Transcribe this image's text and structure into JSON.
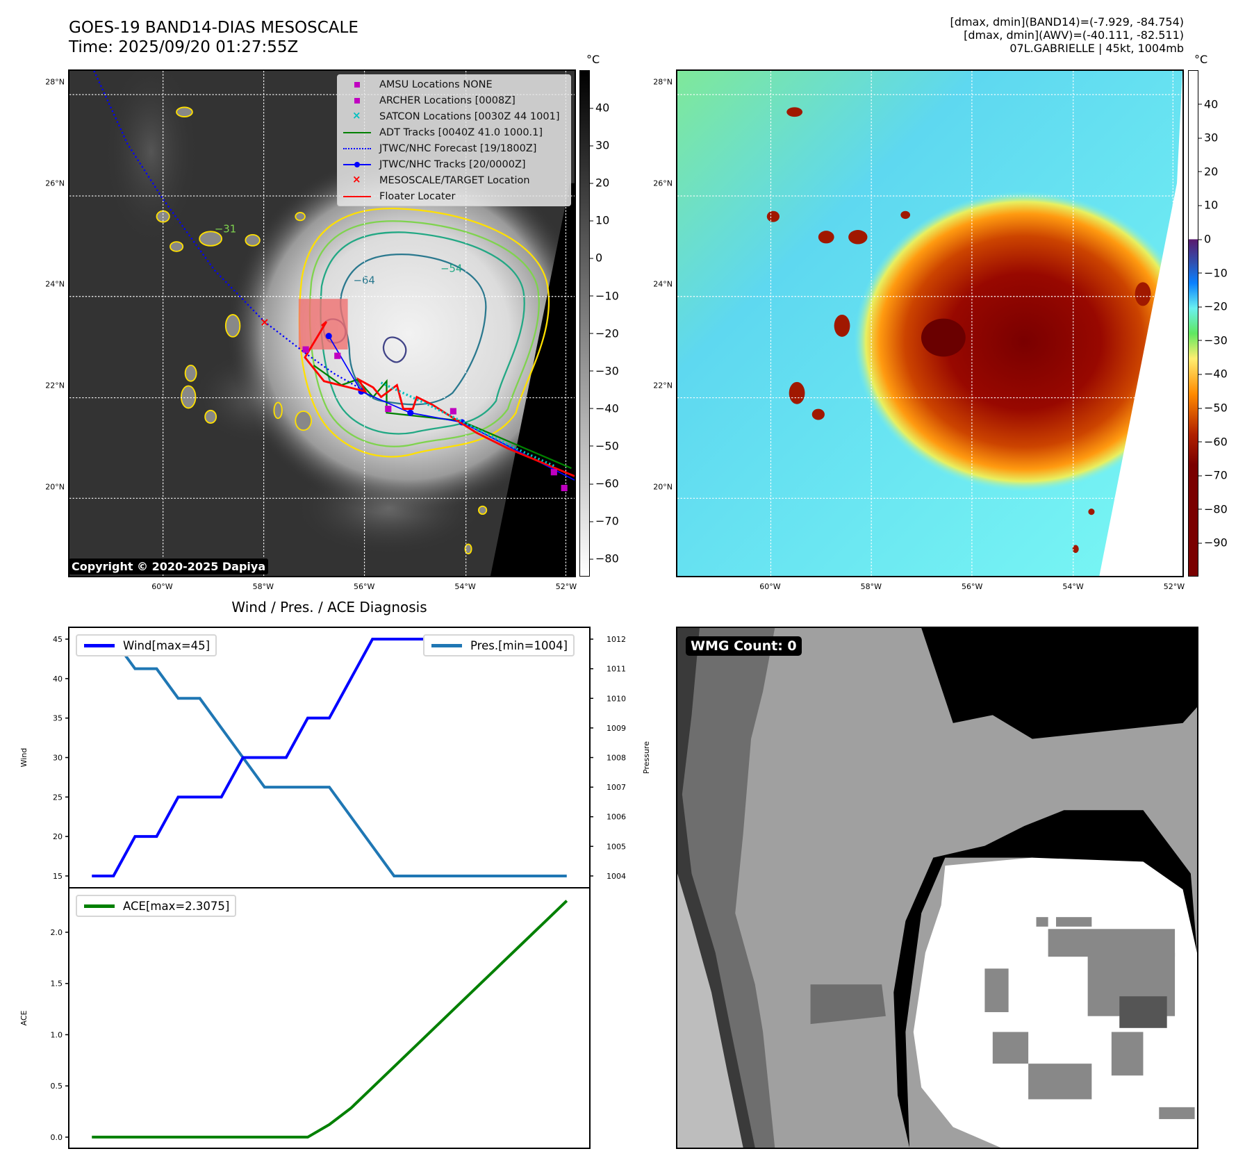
{
  "header": {
    "title_line1": "GOES-19 BAND14-DIAS MESOSCALE",
    "title_line2": "Time: 2025/09/20 01:27:55Z",
    "info_line1": "[dmax, dmin](BAND14)=(-7.929, -84.754)",
    "info_line2": "[dmax, dmin](AWV)=(-40.111, -82.511)",
    "info_line3": "07L.GABRIELLE | 45kt, 1004mb"
  },
  "map_axes": {
    "lat_labels": [
      "28°N",
      "26°N",
      "24°N",
      "22°N",
      "20°N"
    ],
    "lat_values": [
      28,
      26,
      24,
      22,
      20
    ],
    "lon_labels": [
      "60°W",
      "58°W",
      "56°W",
      "54°W",
      "52°W"
    ],
    "lon_values": [
      -60,
      -58,
      -56,
      -54,
      -52
    ]
  },
  "ir_map": {
    "legend": [
      {
        "label": "AMSU Locations NONE",
        "icon": "square-marker",
        "color": "#c000c0"
      },
      {
        "label": "ARCHER Locations [0008Z]",
        "icon": "square-marker",
        "color": "#c000c0"
      },
      {
        "label": "SATCON Locations [0030Z 44 1001]",
        "icon": "x-marker",
        "color": "#00c0c0"
      },
      {
        "label": "ADT Tracks [0040Z 41.0 1000.1]",
        "icon": "solid-line",
        "color": "#008000"
      },
      {
        "label": "JTWC/NHC Forecast [19/1800Z]",
        "icon": "dotted-line",
        "color": "#0000ff"
      },
      {
        "label": "JTWC/NHC Tracks [20/0000Z]",
        "icon": "line-dot",
        "color": "#0000ff"
      },
      {
        "label": "MESOSCALE/TARGET Location",
        "icon": "x-marker",
        "color": "#ff0000"
      },
      {
        "label": "Floater Locater",
        "icon": "solid-line",
        "color": "#ff0000"
      }
    ],
    "contour_labels": [
      "−31",
      "−54",
      "−64"
    ],
    "copyright": "Copyright © 2020-2025 Dapiya",
    "colorbar": {
      "unit": "°C",
      "min": -84.754,
      "max": 50,
      "ticks": [
        40,
        30,
        20,
        10,
        0,
        -10,
        -20,
        -30,
        -40,
        -50,
        -60,
        -70,
        -80
      ],
      "tick_labels": [
        "40",
        "30",
        "20",
        "10",
        "0",
        "−10",
        "−20",
        "−30",
        "−40",
        "−50",
        "−60",
        "−70",
        "−80"
      ]
    }
  },
  "awv_map": {
    "colorbar": {
      "unit": "°C",
      "min": -100,
      "max": 50,
      "ticks": [
        40,
        30,
        20,
        10,
        0,
        -10,
        -20,
        -30,
        -40,
        -50,
        -60,
        -70,
        -80,
        -90
      ],
      "tick_labels": [
        "40",
        "30",
        "20",
        "10",
        "0",
        "−10",
        "−20",
        "−30",
        "−40",
        "−50",
        "−60",
        "−70",
        "−80",
        "−90"
      ]
    }
  },
  "wmg": {
    "count_label": "WMG Count: 0"
  },
  "chart_data": [
    {
      "type": "line",
      "title": "Wind / Pres. / ACE Diagnosis",
      "x": [
        0,
        1,
        2,
        3,
        4,
        5,
        6,
        7,
        8,
        9,
        10,
        11,
        12,
        13,
        14,
        15,
        16,
        17,
        18,
        19,
        20,
        21,
        22
      ],
      "xlim": [
        -1.07,
        23.07
      ],
      "series": [
        {
          "name": "Wind[max=45]",
          "axis": "left",
          "color": "#0000ff",
          "values": [
            15,
            15,
            20,
            20,
            25,
            25,
            25,
            30,
            30,
            30,
            35,
            35,
            40,
            45,
            45,
            45,
            45,
            45,
            45,
            45,
            45,
            45,
            45
          ]
        },
        {
          "name": "Pres.[min=1004]",
          "axis": "right",
          "color": "#1f77b4",
          "values": [
            1012,
            1012,
            1011,
            1011,
            1010,
            1010,
            1009,
            1008,
            1007,
            1007,
            1007,
            1007,
            1006,
            1005,
            1004,
            1004,
            1004,
            1004,
            1004,
            1004,
            1004,
            1004,
            1004
          ]
        }
      ],
      "ylabel": "Wind",
      "ylim": [
        13.5,
        46.5
      ],
      "yticks": [
        15,
        20,
        25,
        30,
        35,
        40,
        45
      ],
      "y2label": "Pressure",
      "y2lim": [
        1003.6,
        1012.4
      ],
      "y2ticks": [
        1004,
        1005,
        1006,
        1007,
        1008,
        1009,
        1010,
        1011,
        1012
      ],
      "legend": [
        "top-left",
        "top-right"
      ]
    },
    {
      "type": "line",
      "x": [
        0,
        1,
        2,
        3,
        4,
        5,
        6,
        7,
        8,
        9,
        10,
        11,
        12,
        13,
        14,
        15,
        16,
        17,
        18,
        19,
        20,
        21,
        22
      ],
      "xlim": [
        -1.07,
        23.07
      ],
      "series": [
        {
          "name": "ACE[max=2.3075]",
          "axis": "left",
          "color": "#008000",
          "values": [
            0,
            0,
            0,
            0,
            0,
            0,
            0,
            0,
            0,
            0,
            0,
            0.1225,
            0.2825,
            0.485,
            0.6875,
            0.89,
            1.0925,
            1.295,
            1.4975,
            1.7,
            1.9025,
            2.105,
            2.3075
          ]
        }
      ],
      "ylabel": "ACE",
      "ylim": [
        -0.109,
        2.434
      ],
      "yticks": [
        0.0,
        0.5,
        1.0,
        1.5,
        2.0
      ],
      "ytick_labels": [
        "0.0",
        "0.5",
        "1.0",
        "1.5",
        "2.0"
      ],
      "legend": [
        "top-left"
      ]
    }
  ]
}
